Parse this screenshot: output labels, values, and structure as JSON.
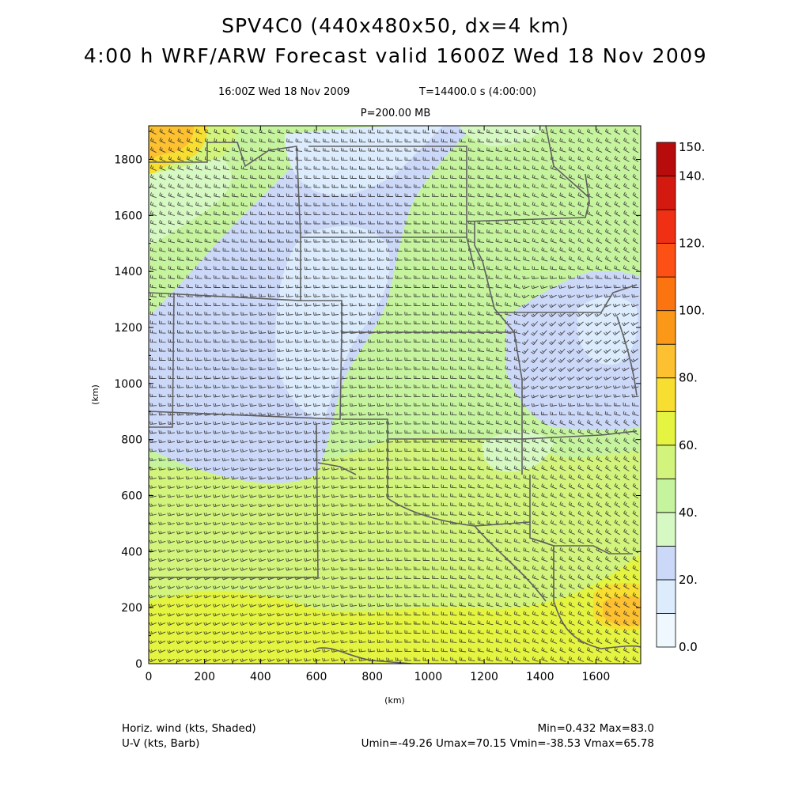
{
  "header": {
    "title_line1": "SPV4C0 (440x480x50, dx=4 km)",
    "title_line2": "4:00 h WRF/ARW Forecast valid 1600Z Wed 18 Nov 2009",
    "valid_time": "16:00Z Wed 18 Nov 2009",
    "elapsed": "T=14400.0 s (4:00:00)",
    "level": "P=200.00 MB"
  },
  "axes": {
    "x_label": "(km)",
    "y_label": "(km)",
    "x_ticks": [
      "0",
      "200",
      "400",
      "600",
      "800",
      "1000",
      "1200",
      "1400",
      "1600"
    ],
    "y_ticks": [
      "0",
      "200",
      "400",
      "600",
      "800",
      "1000",
      "1200",
      "1400",
      "1600",
      "1800"
    ],
    "x_range": [
      0,
      1760
    ],
    "y_range": [
      0,
      1920
    ]
  },
  "colorbar": {
    "labels": [
      "0.0",
      "20.",
      "40.",
      "60.",
      "80.",
      "100.",
      "120.",
      "140.",
      "150."
    ],
    "bins": [
      {
        "lo": 0,
        "hi": 10,
        "color": "#eef8fe"
      },
      {
        "lo": 10,
        "hi": 20,
        "color": "#dcecfc"
      },
      {
        "lo": 20,
        "hi": 30,
        "color": "#ccd8f8"
      },
      {
        "lo": 30,
        "hi": 40,
        "color": "#d6f8c2"
      },
      {
        "lo": 40,
        "hi": 50,
        "color": "#c6f49e"
      },
      {
        "lo": 50,
        "hi": 60,
        "color": "#d2f47c"
      },
      {
        "lo": 60,
        "hi": 70,
        "color": "#e4f440"
      },
      {
        "lo": 70,
        "hi": 80,
        "color": "#f8de30"
      },
      {
        "lo": 80,
        "hi": 90,
        "color": "#fcc030"
      },
      {
        "lo": 90,
        "hi": 100,
        "color": "#fc9818"
      },
      {
        "lo": 100,
        "hi": 110,
        "color": "#fc7410"
      },
      {
        "lo": 110,
        "hi": 120,
        "color": "#fc5014"
      },
      {
        "lo": 120,
        "hi": 130,
        "color": "#f03014"
      },
      {
        "lo": 130,
        "hi": 140,
        "color": "#d41a10"
      },
      {
        "lo": 140,
        "hi": 150,
        "color": "#b80c0c"
      }
    ]
  },
  "footer": {
    "field_shaded": "Horiz. wind (kts, Shaded)",
    "field_barb": "U-V (kts, Barb)",
    "minmax": "Min=0.432 Max=83.0",
    "uv_range": "Umin=-49.26 Umax=70.15 Vmin=-38.53 Vmax=65.78"
  },
  "colors": {
    "background": "#ffffff",
    "state_lines": "#606060",
    "barbs": "#2a2a2a"
  }
}
